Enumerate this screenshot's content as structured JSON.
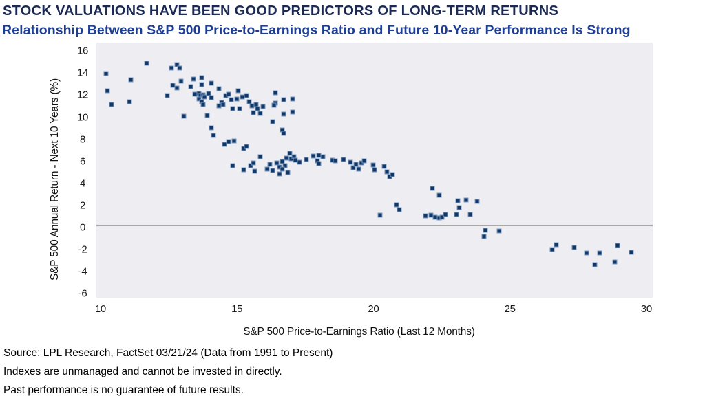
{
  "header": {
    "title": "STOCK VALUATIONS HAVE BEEN GOOD PREDICTORS OF LONG-TERM RETURNS",
    "subtitle": "Relationship Between S&P 500 Price-to-Earnings Ratio and Future 10-Year Performance Is Strong"
  },
  "colors": {
    "title": "#1b2a55",
    "subtitle": "#1e3f94",
    "point_fill": "#103869",
    "point_border": "#7d99bd",
    "plot_background": "#ededf2",
    "zero_line": "#a9a9a9",
    "axis_text": "#1a1a1a"
  },
  "chart_data": {
    "type": "scatter",
    "title": "",
    "xlabel": "S&P 500 Price-to-Earnings Ratio (Last 12 Months)",
    "ylabel": "S&P 500 Annual Return - Next 10 Years (%)",
    "x_ticks": [
      10,
      15,
      20,
      25,
      30
    ],
    "y_ticks": [
      16,
      14,
      12,
      10,
      8,
      6,
      4,
      2,
      0,
      -2,
      -4,
      -6
    ],
    "x_range": [
      9.85,
      30.23
    ],
    "y_range": [
      -6.63,
      16.48
    ],
    "grid": "zero-line-only",
    "legend": "none",
    "points": [
      [
        10.2,
        13.7
      ],
      [
        10.25,
        12.1
      ],
      [
        10.4,
        10.9
      ],
      [
        11.1,
        13.1
      ],
      [
        11.05,
        11.1
      ],
      [
        11.7,
        14.6
      ],
      [
        12.6,
        14.2
      ],
      [
        12.8,
        14.5
      ],
      [
        12.9,
        14.2
      ],
      [
        12.95,
        13.0
      ],
      [
        13.4,
        13.2
      ],
      [
        13.7,
        13.3
      ],
      [
        14.05,
        12.8
      ],
      [
        12.65,
        12.6
      ],
      [
        12.8,
        12.4
      ],
      [
        13.3,
        12.5
      ],
      [
        13.7,
        12.7
      ],
      [
        14.35,
        12.3
      ],
      [
        12.45,
        11.7
      ],
      [
        13.45,
        11.8
      ],
      [
        13.6,
        11.9
      ],
      [
        13.65,
        11.7
      ],
      [
        13.75,
        11.75
      ],
      [
        13.8,
        11.55
      ],
      [
        13.95,
        11.9
      ],
      [
        14.05,
        11.5
      ],
      [
        13.6,
        11.35
      ],
      [
        13.7,
        11.1
      ],
      [
        13.75,
        10.9
      ],
      [
        13.05,
        9.8
      ],
      [
        13.9,
        9.85
      ],
      [
        14.05,
        8.75
      ],
      [
        14.15,
        8.05
      ],
      [
        14.6,
        11.7
      ],
      [
        14.7,
        11.8
      ],
      [
        15.05,
        12.1
      ],
      [
        14.8,
        11.3
      ],
      [
        15.0,
        11.4
      ],
      [
        15.2,
        11.55
      ],
      [
        15.35,
        11.7
      ],
      [
        15.45,
        11.1
      ],
      [
        14.45,
        11.05
      ],
      [
        14.5,
        10.9
      ],
      [
        14.35,
        10.75
      ],
      [
        14.85,
        10.5
      ],
      [
        15.1,
        10.5
      ],
      [
        15.55,
        10.75
      ],
      [
        15.7,
        10.85
      ],
      [
        15.95,
        10.7
      ],
      [
        15.6,
        10.1
      ],
      [
        15.85,
        10.05
      ],
      [
        15.75,
        10.5
      ],
      [
        14.55,
        7.25
      ],
      [
        14.7,
        7.5
      ],
      [
        14.9,
        7.6
      ],
      [
        15.25,
        6.9
      ],
      [
        15.35,
        7.05
      ],
      [
        16.4,
        11.95
      ],
      [
        16.4,
        11.0
      ],
      [
        16.35,
        10.8
      ],
      [
        16.7,
        11.3
      ],
      [
        17.05,
        11.4
      ],
      [
        16.7,
        10.0
      ],
      [
        17.05,
        10.2
      ],
      [
        16.3,
        9.3
      ],
      [
        16.65,
        8.6
      ],
      [
        16.7,
        8.25
      ],
      [
        14.85,
        5.35
      ],
      [
        15.25,
        4.95
      ],
      [
        15.5,
        5.35
      ],
      [
        15.6,
        5.6
      ],
      [
        15.65,
        4.85
      ],
      [
        15.85,
        6.15
      ],
      [
        16.1,
        5.0
      ],
      [
        16.2,
        5.45
      ],
      [
        16.3,
        4.9
      ],
      [
        16.45,
        5.6
      ],
      [
        16.55,
        5.2
      ],
      [
        16.65,
        5.7
      ],
      [
        16.75,
        5.35
      ],
      [
        16.65,
        5.0
      ],
      [
        16.55,
        4.6
      ],
      [
        16.85,
        4.7
      ],
      [
        16.95,
        6.45
      ],
      [
        16.8,
        6.0
      ],
      [
        17.0,
        5.95
      ],
      [
        17.1,
        6.15
      ],
      [
        17.15,
        5.85
      ],
      [
        17.3,
        5.65
      ],
      [
        17.55,
        5.9
      ],
      [
        17.8,
        6.2
      ],
      [
        18.0,
        6.25
      ],
      [
        17.95,
        5.75
      ],
      [
        18.0,
        5.5
      ],
      [
        18.15,
        6.15
      ],
      [
        18.5,
        5.85
      ],
      [
        18.6,
        5.75
      ],
      [
        18.9,
        5.9
      ],
      [
        19.15,
        5.65
      ],
      [
        19.25,
        5.15
      ],
      [
        19.35,
        5.45
      ],
      [
        19.45,
        5.0
      ],
      [
        19.55,
        5.6
      ],
      [
        19.65,
        5.75
      ],
      [
        20.0,
        5.4
      ],
      [
        20.05,
        4.95
      ],
      [
        20.4,
        5.25
      ],
      [
        20.5,
        4.8
      ],
      [
        20.6,
        4.35
      ],
      [
        20.7,
        4.5
      ],
      [
        22.15,
        3.25
      ],
      [
        22.4,
        2.65
      ],
      [
        23.1,
        2.15
      ],
      [
        23.4,
        2.2
      ],
      [
        23.8,
        2.1
      ],
      [
        23.15,
        1.55
      ],
      [
        20.85,
        1.8
      ],
      [
        20.95,
        1.35
      ],
      [
        20.25,
        0.85
      ],
      [
        21.9,
        0.8
      ],
      [
        22.1,
        0.85
      ],
      [
        22.25,
        0.65
      ],
      [
        22.4,
        0.6
      ],
      [
        22.5,
        0.65
      ],
      [
        22.65,
        0.9
      ],
      [
        23.05,
        0.9
      ],
      [
        23.55,
        0.9
      ],
      [
        24.1,
        -0.55
      ],
      [
        24.6,
        -0.6
      ],
      [
        24.05,
        -1.1
      ],
      [
        26.55,
        -2.3
      ],
      [
        26.7,
        -1.85
      ],
      [
        27.35,
        -2.1
      ],
      [
        27.8,
        -2.6
      ],
      [
        28.3,
        -2.6
      ],
      [
        28.1,
        -3.65
      ],
      [
        28.95,
        -1.9
      ],
      [
        28.85,
        -3.4
      ],
      [
        29.45,
        -2.5
      ]
    ]
  },
  "footer": {
    "lines": [
      "Source: LPL Research, FactSet 03/21/24 (Data from 1991 to Present)",
      "Indexes are unmanaged and cannot be invested in directly.",
      "Past performance is no guarantee of future results."
    ]
  }
}
